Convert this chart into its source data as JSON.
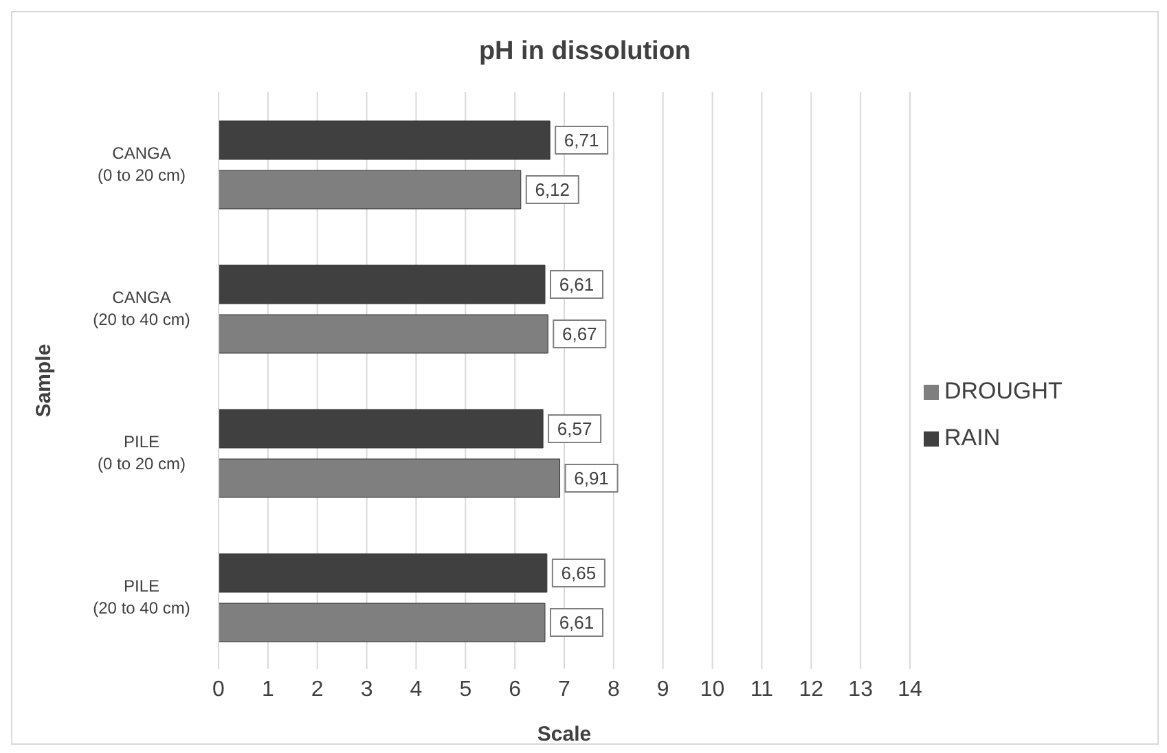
{
  "chart_data": {
    "type": "bar",
    "orientation": "horizontal",
    "title": "pH in dissolution",
    "xlabel": "Scale",
    "ylabel": "Sample",
    "categories": [
      "CANGA\n(0 to 20 cm)",
      "CANGA\n(20 to 40 cm)",
      "PILE\n(0 to 20 cm)",
      "PILE\n(20 to 40 cm)"
    ],
    "series": [
      {
        "name": "RAIN",
        "color": "#404040",
        "values": [
          6.71,
          6.61,
          6.57,
          6.65
        ],
        "value_labels": [
          "6,71",
          "6,61",
          "6,57",
          "6,65"
        ]
      },
      {
        "name": "DROUGHT",
        "color": "#7f7f7f",
        "values": [
          6.12,
          6.67,
          6.91,
          6.61
        ],
        "value_labels": [
          "6,12",
          "6,67",
          "6,91",
          "6,61"
        ]
      }
    ],
    "xlim": [
      0,
      14
    ],
    "xticks": [
      0,
      1,
      2,
      3,
      4,
      5,
      6,
      7,
      8,
      9,
      10,
      11,
      12,
      13,
      14
    ],
    "grid": "x",
    "legend": "right"
  }
}
